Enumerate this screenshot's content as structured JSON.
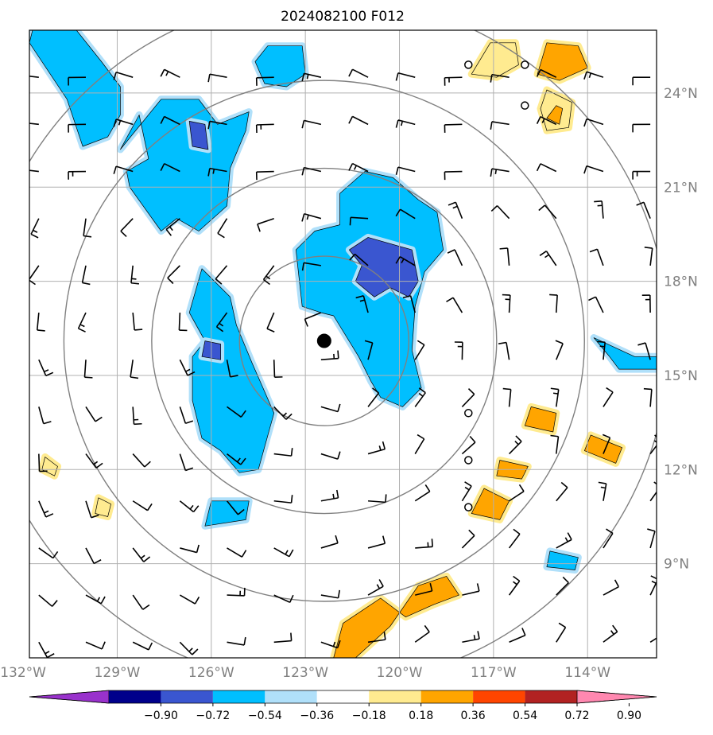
{
  "chart_data": {
    "type": "contour-map",
    "title": "2024082100 F012",
    "lon_ticks": [
      {
        "value": -132,
        "label": "132°W"
      },
      {
        "value": -129,
        "label": "129°W"
      },
      {
        "value": -126,
        "label": "126°W"
      },
      {
        "value": -123,
        "label": "123°W"
      },
      {
        "value": -120,
        "label": "120°W"
      },
      {
        "value": -117,
        "label": "117°W"
      },
      {
        "value": -114,
        "label": "114°W"
      }
    ],
    "lat_ticks": [
      {
        "value": 9,
        "label": "9°N"
      },
      {
        "value": 12,
        "label": "12°N"
      },
      {
        "value": 15,
        "label": "15°N"
      },
      {
        "value": 18,
        "label": "18°N"
      },
      {
        "value": 21,
        "label": "21°N"
      },
      {
        "value": 24,
        "label": "24°N"
      }
    ],
    "lon_range": [
      -131.8,
      -111.8
    ],
    "lat_range": [
      6.0,
      26.0
    ],
    "grid": true,
    "storm_center": {
      "lon": -122.4,
      "lat": 16.1
    },
    "range_rings_deg": [
      2.7,
      5.5,
      8.3,
      11.0
    ],
    "colorbar": {
      "levels": [
        -0.9,
        -0.72,
        -0.54,
        -0.36,
        -0.18,
        0.18,
        0.36,
        0.54,
        0.72,
        0.9
      ],
      "tick_labels": [
        "−0.90",
        "−0.72",
        "−0.54",
        "−0.36",
        "−0.18",
        "0.18",
        "0.36",
        "0.54",
        "0.72",
        "0.90"
      ],
      "colors": [
        "#9932cc",
        "#00008b",
        "#3a56d0",
        "#00bfff",
        "#b0e0fa",
        "#ffffff",
        "#ffeb90",
        "#ffa500",
        "#ff4500",
        "#b22222",
        "#ff88b0"
      ],
      "extend": "both"
    },
    "regions": [
      {
        "name": "NW upper blob",
        "level": -0.36,
        "lon": [
          -131.7,
          -130.3,
          -129.5,
          -128.9,
          -128.9,
          -129.3,
          -130.1,
          -130.6,
          -131.8
        ],
        "lat": [
          26.0,
          26.0,
          25.0,
          24.2,
          23.3,
          22.6,
          22.3,
          23.8,
          25.6
        ]
      },
      {
        "name": "N blob",
        "level": -0.36,
        "lon": [
          -124.2,
          -123.1,
          -123.0,
          -123.6,
          -124.3,
          -124.6
        ],
        "lat": [
          25.5,
          25.5,
          24.6,
          24.2,
          24.3,
          25.0
        ]
      },
      {
        "name": "NW lower blob",
        "level": -0.36,
        "lon": [
          -128.9,
          -127.6,
          -126.4,
          -125.8,
          -124.8,
          -124.9,
          -125.4,
          -125.5,
          -126.4,
          -127.1,
          -127.6,
          -128.6,
          -128.7,
          -128.0,
          -128.3
        ],
        "lat": [
          22.2,
          23.8,
          23.8,
          23.0,
          23.4,
          22.8,
          21.6,
          20.4,
          19.6,
          20.0,
          19.6,
          21.0,
          21.5,
          21.9,
          23.3
        ]
      },
      {
        "name": "NW lower core",
        "level": -0.54,
        "lon": [
          -126.7,
          -126.2,
          -126.1,
          -126.6
        ],
        "lat": [
          23.1,
          23.0,
          22.2,
          22.3
        ]
      },
      {
        "name": "Central mass",
        "level": -0.36,
        "lon": [
          -121.1,
          -120.2,
          -119.4,
          -118.8,
          -118.6,
          -119.2,
          -119.5,
          -119.6,
          -119.3,
          -119.9,
          -120.6,
          -120.9,
          -121.3,
          -122.1,
          -122.5,
          -123.1,
          -123.3,
          -122.7,
          -121.9,
          -121.9
        ],
        "lat": [
          21.5,
          21.3,
          20.6,
          20.2,
          19.0,
          18.3,
          17.2,
          15.8,
          14.6,
          14.0,
          14.3,
          14.8,
          15.6,
          16.9,
          17.0,
          17.2,
          19.0,
          19.6,
          19.8,
          20.8
        ]
      },
      {
        "name": "Central core",
        "level": -0.54,
        "lon": [
          -121.0,
          -119.6,
          -119.4,
          -119.7,
          -120.3,
          -120.8,
          -121.4,
          -121.2,
          -121.6
        ],
        "lat": [
          19.4,
          19.0,
          18.0,
          17.5,
          17.8,
          17.5,
          18.0,
          18.5,
          19.0
        ]
      },
      {
        "name": "West vertical band",
        "level": -0.36,
        "lon": [
          -126.3,
          -125.4,
          -125.2,
          -124.7,
          -124.0,
          -124.5,
          -125.1,
          -125.7,
          -126.3,
          -126.6,
          -126.6,
          -126.2,
          -126.7
        ],
        "lat": [
          18.4,
          17.5,
          16.6,
          15.4,
          13.8,
          12.0,
          11.9,
          12.6,
          13.0,
          14.2,
          15.6,
          16.1,
          17.0
        ]
      },
      {
        "name": "West band core",
        "level": -0.54,
        "lon": [
          -126.2,
          -125.7,
          -125.7,
          -126.3
        ],
        "lat": [
          16.1,
          16.0,
          15.5,
          15.6
        ]
      },
      {
        "name": "SW small",
        "level": -0.36,
        "lon": [
          -126.0,
          -124.8,
          -124.9,
          -126.2
        ],
        "lat": [
          11.0,
          11.0,
          10.4,
          10.2
        ]
      },
      {
        "name": "E far blob",
        "level": -0.36,
        "lon": [
          -113.8,
          -112.5,
          -111.8,
          -111.8,
          -113.0,
          -113.3
        ],
        "lat": [
          16.2,
          15.6,
          15.6,
          15.2,
          15.2,
          15.6
        ]
      },
      {
        "name": "SE small blue",
        "level": -0.36,
        "lon": [
          -115.2,
          -114.3,
          -114.4,
          -115.3
        ],
        "lat": [
          9.4,
          9.2,
          8.8,
          8.9
        ]
      },
      {
        "name": "NE yellow 1",
        "level": 0.18,
        "lon": [
          -117.1,
          -116.3,
          -116.2,
          -116.9,
          -117.7
        ],
        "lat": [
          25.6,
          25.6,
          24.9,
          24.5,
          24.6
        ]
      },
      {
        "name": "NE orange",
        "level": 0.36,
        "lon": [
          -115.3,
          -114.3,
          -114.0,
          -114.9,
          -115.6
        ],
        "lat": [
          25.6,
          25.5,
          24.8,
          24.4,
          24.6
        ]
      },
      {
        "name": "NE yellow 2",
        "level": 0.18,
        "lon": [
          -115.3,
          -114.5,
          -114.6,
          -115.3,
          -115.5
        ],
        "lat": [
          24.1,
          23.7,
          22.9,
          22.8,
          23.5
        ]
      },
      {
        "name": "NE orange 2",
        "level": 0.36,
        "lon": [
          -115.0,
          -114.8,
          -114.9,
          -115.3
        ],
        "lat": [
          23.6,
          23.5,
          23.0,
          23.2
        ]
      },
      {
        "name": "E orange 1",
        "level": 0.36,
        "lon": [
          -115.8,
          -115.0,
          -115.1,
          -116.0
        ],
        "lat": [
          14.0,
          13.8,
          13.2,
          13.4
        ]
      },
      {
        "name": "E orange 2",
        "level": 0.36,
        "lon": [
          -113.9,
          -112.9,
          -113.1,
          -114.1
        ],
        "lat": [
          13.1,
          12.7,
          12.2,
          12.6
        ]
      },
      {
        "name": "E orange 3",
        "level": 0.36,
        "lon": [
          -116.8,
          -115.9,
          -116.1,
          -116.9
        ],
        "lat": [
          12.3,
          12.1,
          11.7,
          11.8
        ]
      },
      {
        "name": "E orange 4",
        "level": 0.36,
        "lon": [
          -117.3,
          -116.5,
          -116.8,
          -117.7
        ],
        "lat": [
          11.4,
          11.0,
          10.4,
          10.6
        ]
      },
      {
        "name": "S orange band",
        "level": 0.36,
        "lon": [
          -121.8,
          -120.6,
          -119.8,
          -118.9,
          -118.1,
          -118.5,
          -119.4,
          -120.3,
          -121.4,
          -122.1
        ],
        "lat": [
          7.1,
          7.9,
          7.3,
          7.7,
          8.0,
          8.6,
          8.3,
          7.0,
          6.0,
          6.0
        ]
      },
      {
        "name": "SW yellow 1",
        "level": 0.18,
        "lon": [
          -131.3,
          -130.9,
          -131.0,
          -131.4
        ],
        "lat": [
          12.4,
          12.1,
          11.8,
          12.0
        ]
      },
      {
        "name": "SW yellow 2",
        "level": 0.18,
        "lon": [
          -129.6,
          -129.2,
          -129.3,
          -129.7
        ],
        "lat": [
          11.1,
          10.9,
          10.5,
          10.6
        ]
      }
    ],
    "barb_field": {
      "lon_step": 1.5,
      "lat_step": 1.5,
      "note": "wind barbs"
    }
  }
}
